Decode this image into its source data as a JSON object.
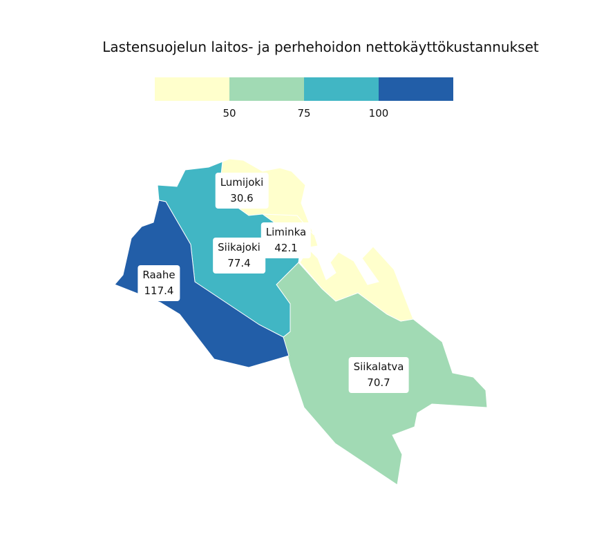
{
  "title": "Lastensuojelun laitos- ja perhehoidon nettokäyttökustannukset",
  "legend": {
    "colors": [
      "#ffffcc",
      "#a1dab4",
      "#41b6c4",
      "#225ea8"
    ],
    "ticks": [
      "50",
      "75",
      "100"
    ]
  },
  "regions": [
    {
      "name": "Lumijoki",
      "value": "30.6",
      "color": "#ffffcc"
    },
    {
      "name": "Liminka",
      "value": "42.1",
      "color": "#ffffcc"
    },
    {
      "name": "Siikajoki",
      "value": "77.4",
      "color": "#41b6c4"
    },
    {
      "name": "Raahe",
      "value": "117.4",
      "color": "#225ea8"
    },
    {
      "name": "Siikalatva",
      "value": "70.7",
      "color": "#a1dab4"
    }
  ]
}
